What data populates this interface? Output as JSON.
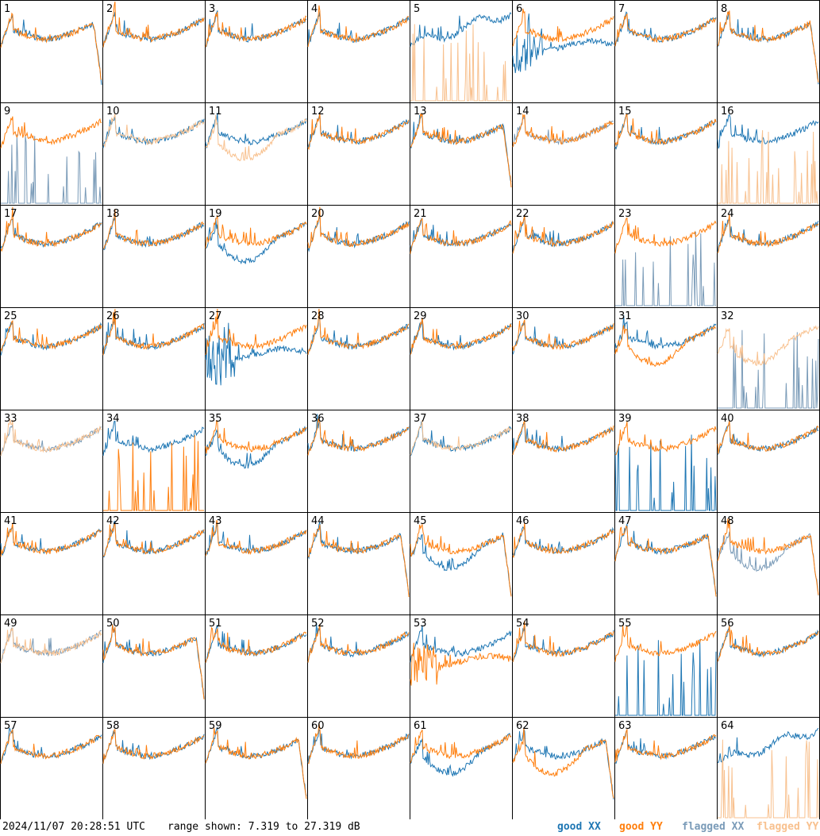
{
  "footer": {
    "timestamp": "2024/11/07 20:28:51 UTC",
    "range_text": "range shown: 7.319 to 27.319 dB"
  },
  "legend": [
    {
      "label": "good XX",
      "color": "#1f77b4"
    },
    {
      "label": "good YY",
      "color": "#ff7f0e"
    },
    {
      "label": "flagged XX",
      "color": "#7a9bb8"
    },
    {
      "label": "flagged YY",
      "color": "#f8c18f"
    }
  ],
  "chart_data": {
    "type": "line",
    "title": "",
    "xlabel": "",
    "ylabel": "",
    "ylim": [
      7.319,
      27.319
    ],
    "unit": "dB",
    "grid_rows": 8,
    "grid_cols": 8,
    "panels": [
      {
        "label": "1",
        "xx": "good",
        "yy": "good",
        "xx_shape": "normal",
        "yy_shape": "normal",
        "drop_end": true
      },
      {
        "label": "2",
        "xx": "good",
        "yy": "good",
        "xx_shape": "normal",
        "yy_shape": "normal"
      },
      {
        "label": "3",
        "xx": "good",
        "yy": "good",
        "xx_shape": "normal",
        "yy_shape": "normal"
      },
      {
        "label": "4",
        "xx": "good",
        "yy": "good",
        "xx_shape": "normal",
        "yy_shape": "normal"
      },
      {
        "label": "5",
        "xx": "good",
        "yy": "flagged",
        "xx_shape": "rise",
        "yy_shape": "spikes"
      },
      {
        "label": "6",
        "xx": "good",
        "yy": "good",
        "xx_shape": "deep",
        "yy_shape": "normal"
      },
      {
        "label": "7",
        "xx": "good",
        "yy": "good",
        "xx_shape": "normal",
        "yy_shape": "normal"
      },
      {
        "label": "8",
        "xx": "good",
        "yy": "good",
        "xx_shape": "normal",
        "yy_shape": "normal",
        "drop_end": true
      },
      {
        "label": "9",
        "xx": "flagged",
        "yy": "good",
        "xx_shape": "spikes",
        "yy_shape": "normal"
      },
      {
        "label": "10",
        "xx": "good",
        "yy": "flagged",
        "xx_shape": "normal",
        "yy_shape": "normal"
      },
      {
        "label": "11",
        "xx": "good",
        "yy": "flagged",
        "xx_shape": "normal",
        "yy_shape": "low"
      },
      {
        "label": "12",
        "xx": "good",
        "yy": "good",
        "xx_shape": "normal",
        "yy_shape": "normal"
      },
      {
        "label": "13",
        "xx": "good",
        "yy": "good",
        "xx_shape": "normal",
        "yy_shape": "normal",
        "drop_end": true
      },
      {
        "label": "14",
        "xx": "flagged",
        "yy": "good",
        "xx_shape": "normal",
        "yy_shape": "normal"
      },
      {
        "label": "15",
        "xx": "good",
        "yy": "good",
        "xx_shape": "normal",
        "yy_shape": "normal"
      },
      {
        "label": "16",
        "xx": "good",
        "yy": "flagged",
        "xx_shape": "normal",
        "yy_shape": "spikes"
      },
      {
        "label": "17",
        "xx": "good",
        "yy": "good",
        "xx_shape": "normal",
        "yy_shape": "normal"
      },
      {
        "label": "18",
        "xx": "good",
        "yy": "good",
        "xx_shape": "normal",
        "yy_shape": "normal"
      },
      {
        "label": "19",
        "xx": "good",
        "yy": "good",
        "xx_shape": "low",
        "yy_shape": "normal"
      },
      {
        "label": "20",
        "xx": "good",
        "yy": "good",
        "xx_shape": "normal",
        "yy_shape": "normal"
      },
      {
        "label": "21",
        "xx": "good",
        "yy": "good",
        "xx_shape": "normal",
        "yy_shape": "normal"
      },
      {
        "label": "22",
        "xx": "good",
        "yy": "good",
        "xx_shape": "normal",
        "yy_shape": "normal"
      },
      {
        "label": "23",
        "xx": "flagged",
        "yy": "good",
        "xx_shape": "spikes",
        "yy_shape": "normal"
      },
      {
        "label": "24",
        "xx": "good",
        "yy": "good",
        "xx_shape": "normal",
        "yy_shape": "normal"
      },
      {
        "label": "25",
        "xx": "good",
        "yy": "good",
        "xx_shape": "normal",
        "yy_shape": "normal"
      },
      {
        "label": "26",
        "xx": "good",
        "yy": "good",
        "xx_shape": "normal",
        "yy_shape": "normal"
      },
      {
        "label": "27",
        "xx": "good",
        "yy": "good",
        "xx_shape": "deep",
        "yy_shape": "normal"
      },
      {
        "label": "28",
        "xx": "good",
        "yy": "good",
        "xx_shape": "normal",
        "yy_shape": "normal"
      },
      {
        "label": "29",
        "xx": "good",
        "yy": "good",
        "xx_shape": "normal",
        "yy_shape": "normal"
      },
      {
        "label": "30",
        "xx": "good",
        "yy": "good",
        "xx_shape": "normal",
        "yy_shape": "normal"
      },
      {
        "label": "31",
        "xx": "good",
        "yy": "good",
        "xx_shape": "normal",
        "yy_shape": "low"
      },
      {
        "label": "32",
        "xx": "flagged",
        "yy": "flagged",
        "xx_shape": "spikes",
        "yy_shape": "low"
      },
      {
        "label": "33",
        "xx": "flagged",
        "yy": "flagged",
        "xx_shape": "normal",
        "yy_shape": "normal"
      },
      {
        "label": "34",
        "xx": "good",
        "yy": "good",
        "xx_shape": "normal",
        "yy_shape": "spikes"
      },
      {
        "label": "35",
        "xx": "good",
        "yy": "good",
        "xx_shape": "low",
        "yy_shape": "normal"
      },
      {
        "label": "36",
        "xx": "good",
        "yy": "good",
        "xx_shape": "normal",
        "yy_shape": "normal"
      },
      {
        "label": "37",
        "xx": "good",
        "yy": "flagged",
        "xx_shape": "normal",
        "yy_shape": "normal"
      },
      {
        "label": "38",
        "xx": "good",
        "yy": "good",
        "xx_shape": "normal",
        "yy_shape": "normal"
      },
      {
        "label": "39",
        "xx": "good",
        "yy": "good",
        "xx_shape": "spikes",
        "yy_shape": "normal"
      },
      {
        "label": "40",
        "xx": "good",
        "yy": "good",
        "xx_shape": "normal",
        "yy_shape": "normal"
      },
      {
        "label": "41",
        "xx": "good",
        "yy": "good",
        "xx_shape": "normal",
        "yy_shape": "normal"
      },
      {
        "label": "42",
        "xx": "good",
        "yy": "good",
        "xx_shape": "normal",
        "yy_shape": "normal"
      },
      {
        "label": "43",
        "xx": "good",
        "yy": "good",
        "xx_shape": "normal",
        "yy_shape": "normal"
      },
      {
        "label": "44",
        "xx": "good",
        "yy": "good",
        "xx_shape": "normal",
        "yy_shape": "normal",
        "drop_end": true
      },
      {
        "label": "45",
        "xx": "good",
        "yy": "good",
        "xx_shape": "low",
        "yy_shape": "normal",
        "drop_end": true
      },
      {
        "label": "46",
        "xx": "good",
        "yy": "good",
        "xx_shape": "normal",
        "yy_shape": "normal"
      },
      {
        "label": "47",
        "xx": "good",
        "yy": "good",
        "xx_shape": "normal",
        "yy_shape": "normal",
        "drop_end": true
      },
      {
        "label": "48",
        "xx": "flagged",
        "yy": "good",
        "xx_shape": "low",
        "yy_shape": "normal",
        "drop_end": true
      },
      {
        "label": "49",
        "xx": "flagged",
        "yy": "flagged",
        "xx_shape": "normal",
        "yy_shape": "normal"
      },
      {
        "label": "50",
        "xx": "good",
        "yy": "good",
        "xx_shape": "normal",
        "yy_shape": "normal",
        "drop_end": true
      },
      {
        "label": "51",
        "xx": "good",
        "yy": "good",
        "xx_shape": "normal",
        "yy_shape": "normal"
      },
      {
        "label": "52",
        "xx": "good",
        "yy": "good",
        "xx_shape": "normal",
        "yy_shape": "normal"
      },
      {
        "label": "53",
        "xx": "good",
        "yy": "good",
        "xx_shape": "normal",
        "yy_shape": "deep"
      },
      {
        "label": "54",
        "xx": "good",
        "yy": "good",
        "xx_shape": "normal",
        "yy_shape": "normal"
      },
      {
        "label": "55",
        "xx": "good",
        "yy": "good",
        "xx_shape": "spikes",
        "yy_shape": "normal"
      },
      {
        "label": "56",
        "xx": "good",
        "yy": "good",
        "xx_shape": "normal",
        "yy_shape": "normal"
      },
      {
        "label": "57",
        "xx": "good",
        "yy": "good",
        "xx_shape": "normal",
        "yy_shape": "normal"
      },
      {
        "label": "58",
        "xx": "good",
        "yy": "good",
        "xx_shape": "normal",
        "yy_shape": "normal"
      },
      {
        "label": "59",
        "xx": "good",
        "yy": "good",
        "xx_shape": "normal",
        "yy_shape": "normal",
        "drop_end": true
      },
      {
        "label": "60",
        "xx": "good",
        "yy": "good",
        "xx_shape": "normal",
        "yy_shape": "normal"
      },
      {
        "label": "61",
        "xx": "good",
        "yy": "good",
        "xx_shape": "low",
        "yy_shape": "normal"
      },
      {
        "label": "62",
        "xx": "good",
        "yy": "good",
        "xx_shape": "normal",
        "yy_shape": "low",
        "drop_end": true
      },
      {
        "label": "63",
        "xx": "good",
        "yy": "good",
        "xx_shape": "normal",
        "yy_shape": "normal"
      },
      {
        "label": "64",
        "xx": "good",
        "yy": "flagged",
        "xx_shape": "rise",
        "yy_shape": "spikes"
      }
    ]
  }
}
